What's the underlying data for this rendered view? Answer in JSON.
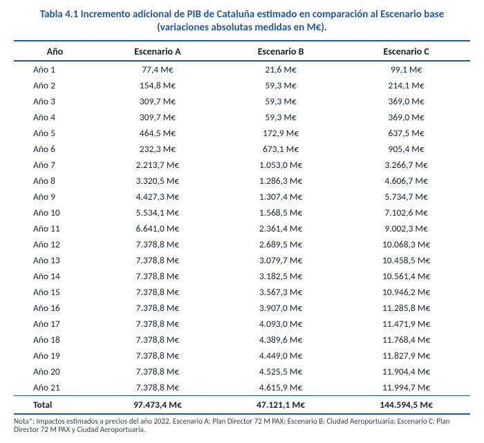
{
  "title_line1": "Tabla 4.1 Incremento adicional de PIB de Cataluña estimado en comparación al Escenario base",
  "title_line2": "(variaciones absolutas medidas en M€).",
  "title_color": "#1f5aa0",
  "title_fontsize": 15,
  "columns": [
    "Año",
    "Escenario A",
    "Escenario B",
    "Escenario C"
  ],
  "header_fontsize": 14,
  "header_rule_color": "#1f5aa0",
  "cell_fontsize": 13.5,
  "text_color": "#17202a",
  "col_align": [
    "left",
    "center",
    "center",
    "center"
  ],
  "col_widths_pct": [
    18,
    27,
    27,
    28
  ],
  "rows": [
    [
      "Año 1",
      "77,4 M€",
      "21,6 M€",
      "99,1 M€"
    ],
    [
      "Año 2",
      "154,8 M€",
      "59,3 M€",
      "214,1 M€"
    ],
    [
      "Año 3",
      "309,7 M€",
      "59,3 M€",
      "369,0 M€"
    ],
    [
      "Año 4",
      "309,7 M€",
      "59,3 M€",
      "369,0 M€"
    ],
    [
      "Año 5",
      "464,5 M€",
      "172,9 M€",
      "637,5 M€"
    ],
    [
      "Año 6",
      "232,3 M€",
      "673,1 M€",
      "905,4 M€"
    ],
    [
      "Año 7",
      "2.213,7 M€",
      "1.053,0 M€",
      "3.266,7 M€"
    ],
    [
      "Año 8",
      "3.320,5 M€",
      "1.286,3 M€",
      "4.606,7 M€"
    ],
    [
      "Año 9",
      "4.427,3 M€",
      "1.307,4 M€",
      "5.734,7 M€"
    ],
    [
      "Año 10",
      "5.534,1 M€",
      "1.568,5 M€",
      "7.102,6 M€"
    ],
    [
      "Año 11",
      "6.641,0 M€",
      "2.361,4 M€",
      "9.002,3 M€"
    ],
    [
      "Año 12",
      "7.378,8 M€",
      "2.689,5 M€",
      "10.068,3 M€"
    ],
    [
      "Año 13",
      "7.378,8 M€",
      "3.079,7 M€",
      "10.458,5 M€"
    ],
    [
      "Año 14",
      "7.378,8 M€",
      "3.182,5 M€",
      "10.561,4 M€"
    ],
    [
      "Año 15",
      "7.378,8 M€",
      "3.567,3 M€",
      "10.946,2 M€"
    ],
    [
      "Año 16",
      "7.378,8 M€",
      "3.907,0 M€",
      "11.285,8 M€"
    ],
    [
      "Año 17",
      "7.378,8 M€",
      "4.093,0 M€",
      "11.471,9 M€"
    ],
    [
      "Año 18",
      "7.378,8 M€",
      "4.389,6 M€",
      "11.768,4 M€"
    ],
    [
      "Año 19",
      "7.378,8 M€",
      "4.449,0 M€",
      "11.827,9 M€"
    ],
    [
      "Año 20",
      "7.378,8 M€",
      "4.525,5 M€",
      "11.904,4 M€"
    ],
    [
      "Año 21",
      "7.378,8 M€",
      "4.615,9 M€",
      "11.994,7 M€"
    ]
  ],
  "total_row": [
    "Total",
    "97.473,4 M€",
    "47.121,1 M€",
    "144.594,5 M€"
  ],
  "note_text": "Nota*: Impactos estimados a precios del año 2022. Escenario A: Plan Director 72 M PAX; Escenario B: Ciudad Aeroportuaria; Escenario C: Plan Director 72 M PAX y Ciudad Aeroportuaria.",
  "note_color": "#3a3f46",
  "note_fontsize": 11
}
